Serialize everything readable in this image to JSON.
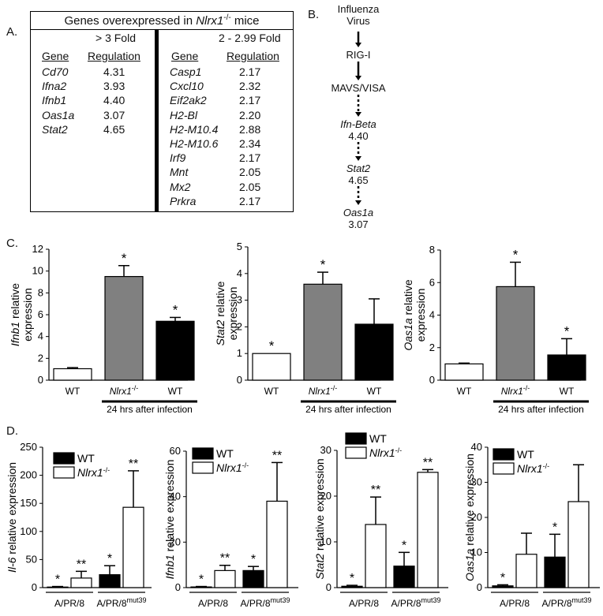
{
  "panel_labels": {
    "a": "A.",
    "b": "B.",
    "c": "C.",
    "d": "D."
  },
  "table": {
    "title_prefix": "Genes overexpressed in ",
    "title_gene": "Nlrx1",
    "title_sup": "-/-",
    "title_suffix": " mice",
    "left_header": "> 3 Fold",
    "right_header": "2 - 2.99 Fold",
    "col_gene": "Gene",
    "col_reg": "Regulation",
    "left_rows": [
      {
        "gene": "Cd70",
        "value": "4.31"
      },
      {
        "gene": "Ifna2",
        "value": "3.93"
      },
      {
        "gene": "Ifnb1",
        "value": "4.40"
      },
      {
        "gene": "Oas1a",
        "value": "3.07"
      },
      {
        "gene": "Stat2",
        "value": "4.65"
      }
    ],
    "right_rows": [
      {
        "gene": "Casp1",
        "value": "2.17"
      },
      {
        "gene": "Cxcl10",
        "value": "2.32"
      },
      {
        "gene": "Eif2ak2",
        "value": "2.17"
      },
      {
        "gene": "H2-Bl",
        "value": "2.20"
      },
      {
        "gene": "H2-M10.4",
        "value": "2.88"
      },
      {
        "gene": "H2-M10.6",
        "value": "2.34"
      },
      {
        "gene": "Irf9",
        "value": "2.17"
      },
      {
        "gene": "Mnt",
        "value": "2.05"
      },
      {
        "gene": "Mx2",
        "value": "2.05"
      },
      {
        "gene": "Prkra",
        "value": "2.17"
      }
    ]
  },
  "pathway": {
    "nodes": [
      {
        "label": "Influenza\nVirus",
        "italic": false,
        "value": ""
      },
      {
        "label": "RIG-I",
        "italic": false,
        "value": ""
      },
      {
        "label": "MAVS/VISA",
        "italic": false,
        "value": ""
      },
      {
        "label": "Ifn-Beta",
        "italic": true,
        "value": "4.40"
      },
      {
        "label": "Stat2",
        "italic": true,
        "value": "4.65"
      },
      {
        "label": "Oas1a",
        "italic": true,
        "value": "3.07"
      }
    ],
    "arrow_styles": [
      "solid",
      "solid",
      "dotted",
      "dotted",
      "dotted"
    ]
  },
  "chart_data": [
    {
      "panel": "C",
      "type": "bar",
      "ylabel_gene": "Ifnb1",
      "ylabel_rest": " relative",
      "ylabel_line2": "expression",
      "ylim": [
        0,
        12
      ],
      "yticks": [
        "0",
        "2",
        "4",
        "6",
        "8",
        "10",
        "12"
      ],
      "categories": [
        "WT",
        "Nlrx1",
        "WT"
      ],
      "category_sup": [
        "",
        "-/-",
        ""
      ],
      "values": [
        1.05,
        9.5,
        5.4
      ],
      "errors": [
        0.1,
        1.0,
        0.35
      ],
      "fills": [
        "#ffffff",
        "#808080",
        "#000000"
      ],
      "stars": [
        "",
        "*",
        "*"
      ],
      "bracket_label": "24 hrs after infection"
    },
    {
      "panel": "C",
      "type": "bar",
      "ylabel_gene": "Stat2",
      "ylabel_rest": " relative",
      "ylabel_line2": "expression",
      "ylim": [
        0,
        5
      ],
      "yticks": [
        "0",
        "1",
        "2",
        "3",
        "4",
        "5"
      ],
      "categories": [
        "WT",
        "Nlrx1",
        "WT"
      ],
      "category_sup": [
        "",
        "-/-",
        ""
      ],
      "values": [
        1.0,
        3.6,
        2.1
      ],
      "errors": [
        0.0,
        0.45,
        0.95
      ],
      "fills": [
        "#ffffff",
        "#808080",
        "#000000"
      ],
      "stars": [
        "*",
        "*",
        ""
      ],
      "bracket_label": "24 hrs after infection"
    },
    {
      "panel": "C",
      "type": "bar",
      "ylabel_gene": "Oas1a",
      "ylabel_rest": " relative",
      "ylabel_line2": "expression",
      "ylim": [
        0,
        8
      ],
      "yticks": [
        "0",
        "2",
        "4",
        "6",
        "8"
      ],
      "categories": [
        "WT",
        "Nlrx1",
        "WT"
      ],
      "category_sup": [
        "",
        "-/-",
        ""
      ],
      "values": [
        1.0,
        5.75,
        1.55
      ],
      "errors": [
        0.05,
        1.5,
        1.0
      ],
      "fills": [
        "#ffffff",
        "#808080",
        "#000000"
      ],
      "stars": [
        "",
        "*",
        "*"
      ],
      "bracket_label": "24 hrs after infection"
    },
    {
      "panel": "D",
      "type": "bar",
      "ylabel_gene": "Il-6",
      "ylabel_rest": " relative expression",
      "ylim": [
        0,
        250
      ],
      "yticks": [
        "0",
        "50",
        "100",
        "150",
        "200",
        "250"
      ],
      "groups": [
        "A/PR/8",
        "A/PR/8"
      ],
      "group_sup": [
        "",
        "mut39"
      ],
      "series": [
        {
          "name": "WT",
          "fill": "#000000",
          "values": [
            1,
            23
          ],
          "errors": [
            1,
            16
          ],
          "stars": [
            "*",
            "*"
          ]
        },
        {
          "name": "Nlrx1",
          "name_sup": "-/-",
          "fill": "#ffffff",
          "values": [
            17,
            143
          ],
          "errors": [
            12,
            65
          ],
          "stars": [
            "**",
            "**"
          ]
        }
      ]
    },
    {
      "panel": "D",
      "type": "bar",
      "ylabel_gene": "Ifnb1",
      "ylabel_rest": " relative expression",
      "ylim": [
        0,
        60
      ],
      "yticks": [
        "0",
        "20",
        "40",
        "60"
      ],
      "groups": [
        "A/PR/8",
        "A/PR/8"
      ],
      "group_sup": [
        "",
        "mut39"
      ],
      "series": [
        {
          "name": "WT",
          "fill": "#000000",
          "values": [
            0.3,
            7.5
          ],
          "errors": [
            0.2,
            1.8
          ],
          "stars": [
            "*",
            "*"
          ]
        },
        {
          "name": "Nlrx1",
          "name_sup": "-/-",
          "fill": "#ffffff",
          "values": [
            7.5,
            38
          ],
          "errors": [
            2.3,
            17
          ],
          "stars": [
            "**",
            "**"
          ]
        }
      ]
    },
    {
      "panel": "D",
      "type": "bar",
      "ylabel_gene": "Stat2",
      "ylabel_rest": " relative expression",
      "ylim": [
        0,
        30
      ],
      "yticks": [
        "0",
        "10",
        "20",
        "30"
      ],
      "groups": [
        "A/PR/8",
        "A/PR/8"
      ],
      "group_sup": [
        "",
        "mut39"
      ],
      "series": [
        {
          "name": "WT",
          "fill": "#000000",
          "values": [
            0.3,
            4.7
          ],
          "errors": [
            0.2,
            3.0
          ],
          "stars": [
            "*",
            "*"
          ]
        },
        {
          "name": "Nlrx1",
          "name_sup": "-/-",
          "fill": "#ffffff",
          "values": [
            13.8,
            25.2
          ],
          "errors": [
            6.0,
            0.6
          ],
          "stars": [
            "**",
            "**"
          ]
        }
      ]
    },
    {
      "panel": "D",
      "type": "bar",
      "ylabel_gene": "Oas1a",
      "ylabel_rest": " relative expression",
      "ylim": [
        0,
        40
      ],
      "yticks": [
        "0",
        "10",
        "20",
        "30",
        "40"
      ],
      "groups": [
        "A/PR/8",
        "A/PR/8"
      ],
      "group_sup": [
        "",
        "mut39"
      ],
      "series": [
        {
          "name": "WT",
          "fill": "#000000",
          "values": [
            0.5,
            8.7
          ],
          "errors": [
            0.3,
            6.5
          ],
          "stars": [
            "*",
            "*"
          ]
        },
        {
          "name": "Nlrx1",
          "name_sup": "-/-",
          "fill": "#ffffff",
          "values": [
            9.5,
            24.5
          ],
          "errors": [
            6.0,
            10.5
          ],
          "stars": [
            "",
            ""
          ]
        }
      ]
    }
  ]
}
